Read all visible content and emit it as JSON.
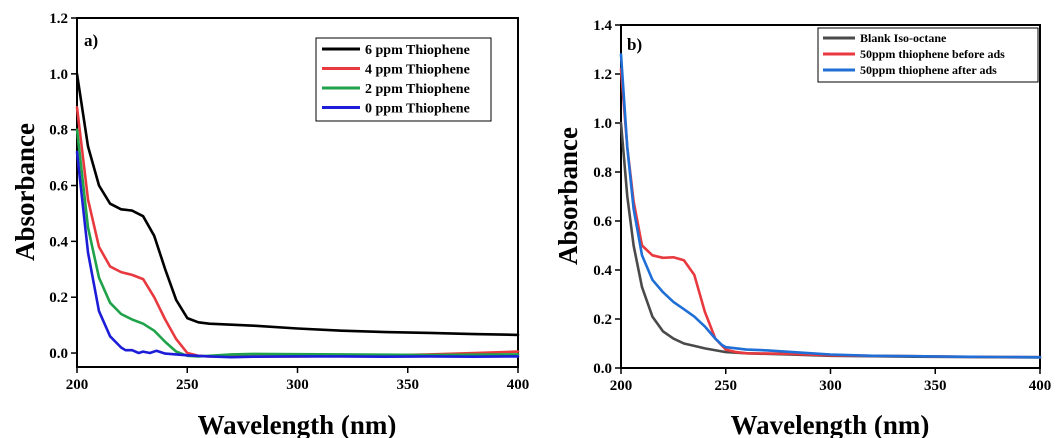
{
  "chart_data": [
    {
      "type": "line",
      "panel_label": "a)",
      "xlabel": "Wavelength (nm)",
      "ylabel": "Absorbance",
      "xlim": [
        200,
        400
      ],
      "ylim": [
        -0.05,
        1.2
      ],
      "xticks": [
        "200",
        "250",
        "300",
        "350",
        "400"
      ],
      "yticks": [
        "0.0",
        "0.2",
        "0.4",
        "0.6",
        "0.8",
        "1.0",
        "1.2"
      ],
      "legend_position": "top-right",
      "grid": false,
      "series": [
        {
          "name": "6 ppm Thiophene",
          "color": "#000000",
          "x": [
            200,
            205,
            210,
            215,
            220,
            225,
            230,
            235,
            240,
            245,
            250,
            255,
            260,
            280,
            300,
            320,
            340,
            360,
            380,
            400
          ],
          "y": [
            1.0,
            0.74,
            0.6,
            0.535,
            0.515,
            0.51,
            0.49,
            0.42,
            0.3,
            0.19,
            0.125,
            0.11,
            0.105,
            0.098,
            0.088,
            0.08,
            0.075,
            0.072,
            0.068,
            0.065
          ]
        },
        {
          "name": "4 ppm Thiophene",
          "color": "#e8393f",
          "x": [
            200,
            205,
            210,
            215,
            220,
            225,
            230,
            235,
            240,
            245,
            250,
            255,
            260,
            280,
            300,
            320,
            340,
            360,
            380,
            400
          ],
          "y": [
            0.88,
            0.55,
            0.38,
            0.31,
            0.29,
            0.28,
            0.265,
            0.2,
            0.12,
            0.05,
            0.0,
            -0.01,
            -0.012,
            -0.012,
            -0.012,
            -0.01,
            -0.008,
            -0.005,
            0.0,
            0.005
          ]
        },
        {
          "name": "2 ppm Thiophene",
          "color": "#1fa24a",
          "x": [
            200,
            205,
            210,
            215,
            220,
            225,
            230,
            235,
            240,
            245,
            250,
            255,
            260,
            270,
            280,
            300,
            320,
            340,
            360,
            380,
            400
          ],
          "y": [
            0.8,
            0.45,
            0.27,
            0.18,
            0.14,
            0.12,
            0.105,
            0.08,
            0.04,
            0.005,
            -0.01,
            -0.012,
            -0.01,
            -0.005,
            -0.003,
            -0.004,
            -0.005,
            -0.006,
            -0.007,
            -0.006,
            -0.005
          ]
        },
        {
          "name": "0 ppm Thiophene",
          "color": "#1d1dd8",
          "x": [
            200,
            205,
            210,
            215,
            220,
            222,
            225,
            228,
            230,
            233,
            236,
            240,
            245,
            250,
            260,
            270,
            280,
            300,
            320,
            340,
            360,
            380,
            400
          ],
          "y": [
            0.72,
            0.36,
            0.15,
            0.06,
            0.02,
            0.01,
            0.01,
            0.0,
            0.005,
            0.0,
            0.008,
            -0.002,
            -0.005,
            -0.008,
            -0.012,
            -0.015,
            -0.013,
            -0.012,
            -0.012,
            -0.013,
            -0.012,
            -0.013,
            -0.012
          ]
        }
      ]
    },
    {
      "type": "line",
      "panel_label": "b)",
      "xlabel": "Wavelength (nm)",
      "ylabel": "Absorbance",
      "xlim": [
        200,
        400
      ],
      "ylim": [
        0.0,
        1.4
      ],
      "xticks": [
        "200",
        "250",
        "300",
        "350",
        "400"
      ],
      "yticks": [
        "0.0",
        "0.2",
        "0.4",
        "0.6",
        "0.8",
        "1.0",
        "1.2",
        "1.4"
      ],
      "legend_position": "top-right",
      "grid": false,
      "series": [
        {
          "name": "Blank Iso-octane",
          "color": "#4a4a4a",
          "x": [
            200,
            203,
            206,
            210,
            215,
            220,
            225,
            230,
            235,
            240,
            250,
            260,
            280,
            300,
            320,
            340,
            360,
            380,
            400
          ],
          "y": [
            1.0,
            0.7,
            0.5,
            0.33,
            0.21,
            0.15,
            0.12,
            0.1,
            0.09,
            0.08,
            0.065,
            0.06,
            0.055,
            0.05,
            0.048,
            0.046,
            0.045,
            0.044,
            0.043
          ]
        },
        {
          "name": "50ppm thiophene before ads",
          "color": "#e8393f",
          "x": [
            200,
            203,
            206,
            210,
            215,
            220,
            225,
            230,
            235,
            240,
            245,
            250,
            255,
            260,
            280,
            300,
            320,
            340,
            360,
            380,
            400
          ],
          "y": [
            1.22,
            0.9,
            0.68,
            0.5,
            0.46,
            0.45,
            0.452,
            0.44,
            0.38,
            0.23,
            0.12,
            0.075,
            0.065,
            0.06,
            0.058,
            0.052,
            0.05,
            0.048,
            0.046,
            0.045,
            0.044
          ]
        },
        {
          "name": "50ppm thiophene after ads",
          "color": "#1f6fd6",
          "x": [
            200,
            203,
            206,
            210,
            215,
            220,
            225,
            230,
            235,
            240,
            245,
            248,
            250,
            260,
            270,
            280,
            300,
            320,
            340,
            360,
            380,
            400
          ],
          "y": [
            1.28,
            0.9,
            0.65,
            0.46,
            0.36,
            0.31,
            0.27,
            0.24,
            0.21,
            0.17,
            0.12,
            0.095,
            0.085,
            0.075,
            0.072,
            0.066,
            0.055,
            0.05,
            0.048,
            0.046,
            0.045,
            0.044
          ]
        }
      ]
    }
  ]
}
